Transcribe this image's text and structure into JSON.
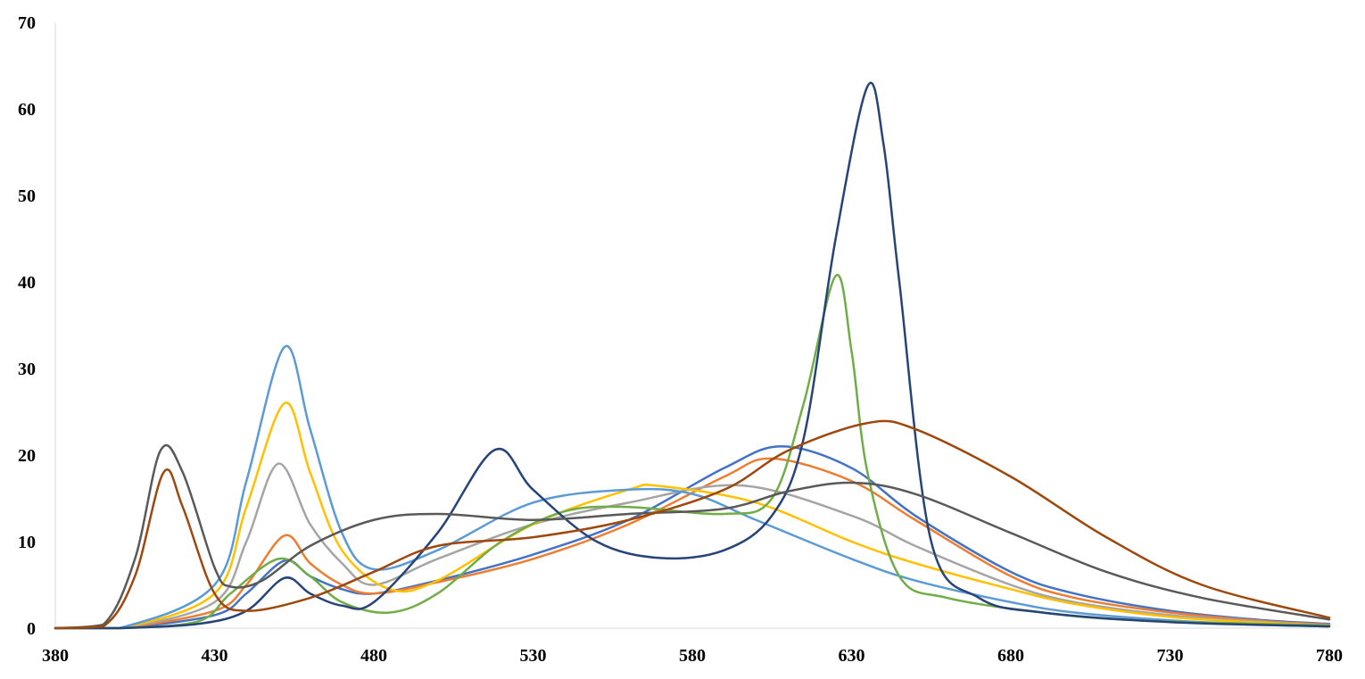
{
  "chart_data": {
    "type": "line",
    "title": "",
    "xlabel": "",
    "ylabel": "",
    "xlim": [
      380,
      780
    ],
    "ylim": [
      0,
      70
    ],
    "x_ticks": [
      380,
      430,
      480,
      530,
      580,
      630,
      680,
      730,
      780
    ],
    "y_ticks": [
      0,
      10,
      20,
      30,
      40,
      50,
      60,
      70
    ],
    "grid": false,
    "legend": "none",
    "series": [
      {
        "color": "#4472c4",
        "x": [
          380,
          400,
          430,
          440,
          452,
          460,
          470,
          480,
          500,
          530,
          560,
          590,
          608,
          630,
          650,
          680,
          700,
          730,
          760,
          780
        ],
        "y": [
          0,
          0,
          1.5,
          4,
          7.8,
          6.0,
          4.5,
          4.0,
          5.5,
          8.5,
          12.5,
          18.5,
          21,
          18.5,
          13,
          6.5,
          4,
          2,
          0.9,
          0.5
        ]
      },
      {
        "color": "#ed7d31",
        "x": [
          380,
          400,
          430,
          440,
          452,
          460,
          470,
          480,
          500,
          530,
          560,
          590,
          605,
          630,
          650,
          680,
          700,
          730,
          760,
          780
        ],
        "y": [
          0,
          0,
          2,
          5,
          10.7,
          7.5,
          5.0,
          4.0,
          5.3,
          8.0,
          12.0,
          17.5,
          19.6,
          17,
          12.5,
          6.0,
          3.5,
          1.8,
          0.8,
          0.4
        ]
      },
      {
        "color": "#a5a5a5",
        "x": [
          380,
          400,
          430,
          440,
          450,
          460,
          470,
          480,
          500,
          530,
          560,
          595,
          630,
          650,
          680,
          700,
          730,
          760,
          780
        ],
        "y": [
          0,
          0,
          3,
          10,
          19,
          12,
          7.5,
          5.0,
          8.0,
          12.0,
          14.5,
          16.5,
          13,
          9.5,
          5.0,
          3.0,
          1.5,
          0.7,
          0.3
        ]
      },
      {
        "color": "#ffc000",
        "x": [
          380,
          400,
          430,
          440,
          452,
          460,
          470,
          485,
          500,
          530,
          560,
          570,
          600,
          630,
          650,
          680,
          700,
          730,
          760,
          780
        ],
        "y": [
          0,
          0,
          4,
          14,
          26,
          18,
          9.0,
          4.5,
          5.5,
          12,
          16,
          16.4,
          14.5,
          10,
          7.5,
          4.5,
          2.8,
          1.3,
          0.6,
          0.3
        ]
      },
      {
        "color": "#5b9bd5",
        "x": [
          380,
          400,
          430,
          440,
          452,
          460,
          470,
          480,
          500,
          530,
          560,
          580,
          600,
          630,
          650,
          680,
          700,
          730,
          760,
          780
        ],
        "y": [
          0,
          0,
          5,
          17,
          32.5,
          23,
          11,
          6.8,
          9.0,
          14.5,
          16,
          15.5,
          12.5,
          8.0,
          5.5,
          3.0,
          1.8,
          0.9,
          0.4,
          0.2
        ]
      },
      {
        "color": "#70ad47",
        "x": [
          380,
          400,
          425,
          435,
          450,
          460,
          470,
          485,
          500,
          520,
          540,
          560,
          590,
          605,
          615,
          625,
          630,
          635,
          645,
          660,
          690,
          720,
          780
        ],
        "y": [
          0,
          0,
          0.8,
          4,
          8.0,
          6.0,
          3.0,
          1.8,
          4.0,
          10.0,
          13.5,
          14,
          13.2,
          15,
          26,
          40.7,
          32,
          18,
          6,
          3.5,
          1.8,
          0.9,
          0.3
        ]
      },
      {
        "color": "#264478",
        "x": [
          380,
          400,
          425,
          440,
          452,
          460,
          470,
          480,
          500,
          518,
          530,
          550,
          570,
          590,
          605,
          615,
          625,
          635,
          640,
          645,
          655,
          670,
          690,
          730,
          780
        ],
        "y": [
          0,
          0,
          0.5,
          2,
          5.8,
          4.0,
          2.6,
          3.0,
          11,
          20.6,
          16,
          10,
          8.1,
          9.0,
          13,
          22,
          45,
          62.6,
          56,
          40,
          10,
          3.5,
          1.8,
          0.7,
          0.2
        ]
      },
      {
        "color": "#595959",
        "x": [
          380,
          395,
          405,
          413,
          420,
          430,
          435,
          445,
          460,
          480,
          500,
          530,
          560,
          590,
          610,
          630,
          650,
          680,
          710,
          740,
          780
        ],
        "y": [
          0,
          0.4,
          8,
          20.5,
          18,
          7,
          4.8,
          5.5,
          9.5,
          12.5,
          13.2,
          12.5,
          13.2,
          13.8,
          15.8,
          16.8,
          15.5,
          11,
          6.5,
          3.5,
          1
        ]
      },
      {
        "color": "#9e480e",
        "x": [
          380,
          395,
          405,
          414,
          420,
          430,
          440,
          460,
          480,
          500,
          530,
          560,
          590,
          610,
          635,
          650,
          680,
          710,
          740,
          780
        ],
        "y": [
          0,
          0.2,
          6,
          18,
          14,
          4,
          2.0,
          3.5,
          6.5,
          9.5,
          10.5,
          12.5,
          16,
          20.5,
          23.7,
          23,
          17.5,
          10.5,
          5.0,
          1.2
        ]
      }
    ]
  }
}
